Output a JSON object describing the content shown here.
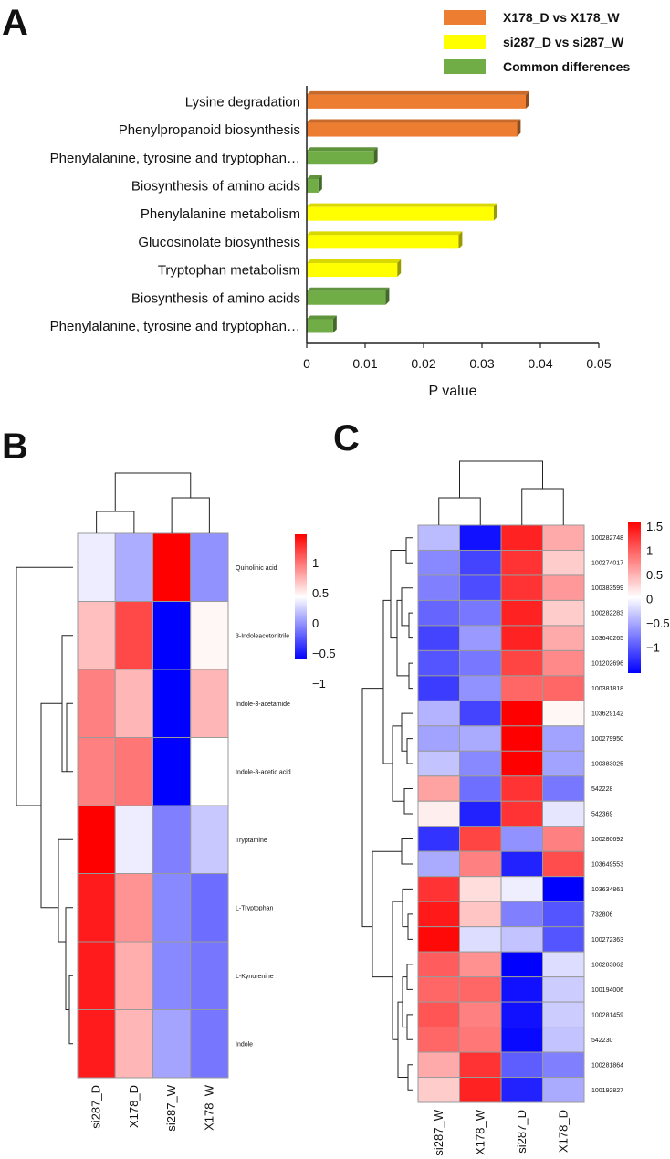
{
  "chart_data": [
    {
      "panel": "A",
      "type": "bar",
      "orientation": "horizontal",
      "categories": [
        "Lysine degradation",
        "Phenylpropanoid biosynthesis",
        "Phenylalanine, tyrosine and tryptophan…",
        "Biosynthesis of amino acids",
        "Phenylalanine metabolism",
        "Glucosinolate biosynthesis",
        "Tryptophan metabolism",
        "Biosynthesis of amino acids",
        "Phenylalanine, tyrosine and tryptophan…"
      ],
      "values": [
        0.0375,
        0.036,
        0.0115,
        0.002,
        0.032,
        0.026,
        0.0155,
        0.0135,
        0.0045
      ],
      "groups": [
        0,
        0,
        2,
        2,
        1,
        1,
        1,
        2,
        2
      ],
      "legend": [
        "X178_D vs X178_W",
        "si287_D vs si287_W",
        "Common differences"
      ],
      "colors": [
        "#ed7d31",
        "#ffff00",
        "#70ad47"
      ],
      "xlabel": "P value",
      "ylabel": "",
      "xlim": [
        0,
        0.05
      ],
      "xticks": [
        "0",
        "0.01",
        "0.02",
        "0.03",
        "0.04",
        "0.05"
      ],
      "legend_position": "top-right"
    },
    {
      "panel": "B",
      "type": "heatmap",
      "rows": [
        "Quinolinic acid",
        "3-Indoleacetonitrile",
        "Indole-3-acetamide",
        "Indole-3-acetic acid",
        "Tryptamine",
        "L-Tryptophan",
        "L-Kynurenine",
        "Indole"
      ],
      "columns": [
        "si287_D",
        "X178_D",
        "si287_W",
        "X178_W"
      ],
      "values": [
        [
          -0.1,
          -0.45,
          1.4,
          -0.6
        ],
        [
          0.35,
          1.0,
          -1.4,
          0.05
        ],
        [
          0.7,
          0.4,
          -1.4,
          0.4
        ],
        [
          0.7,
          0.75,
          -1.4,
          0.0
        ],
        [
          1.4,
          -0.1,
          -0.7,
          -0.3
        ],
        [
          1.25,
          0.6,
          -0.65,
          -0.8
        ],
        [
          1.25,
          0.45,
          -0.65,
          -0.75
        ],
        [
          1.25,
          0.4,
          -0.5,
          -0.75
        ]
      ],
      "colorbar": {
        "range": [
          -1.4,
          1.4
        ],
        "ticks": [
          "1",
          "0.5",
          "0",
          "−0.5",
          "−1"
        ],
        "colors": [
          "#0000ff",
          "#ffffff",
          "#ff0000"
        ]
      }
    },
    {
      "panel": "C",
      "type": "heatmap",
      "rows": [
        "100282748",
        "100274017",
        "100383599",
        "100282283",
        "103640265",
        "101202696",
        "100381818",
        "103629142",
        "100279950",
        "100383025",
        "542228",
        "542369",
        "100280692",
        "103649553",
        "103634861",
        "732806",
        "100272363",
        "100283862",
        "100194006",
        "100281459",
        "542230",
        "100281864",
        "100192827"
      ],
      "columns": [
        "si287_W",
        "X178_W",
        "si287_D",
        "X178_D"
      ],
      "values": [
        [
          -0.4,
          -1.4,
          1.3,
          0.5
        ],
        [
          -0.7,
          -1.1,
          1.2,
          0.3
        ],
        [
          -0.75,
          -1.05,
          1.2,
          0.6
        ],
        [
          -0.9,
          -0.8,
          1.3,
          0.3
        ],
        [
          -1.1,
          -0.6,
          1.3,
          0.5
        ],
        [
          -1.0,
          -0.8,
          1.1,
          0.7
        ],
        [
          -1.15,
          -0.65,
          0.9,
          0.9
        ],
        [
          -0.45,
          -1.1,
          1.5,
          0.05
        ],
        [
          -0.55,
          -0.5,
          1.5,
          -0.55
        ],
        [
          -0.35,
          -0.7,
          1.5,
          -0.55
        ],
        [
          0.55,
          -0.85,
          1.2,
          -0.8
        ],
        [
          0.1,
          -1.3,
          1.2,
          -0.15
        ],
        [
          -1.2,
          1.1,
          -0.65,
          0.75
        ],
        [
          -0.5,
          0.75,
          -1.3,
          1.05
        ],
        [
          1.2,
          0.2,
          -0.1,
          -1.5
        ],
        [
          1.35,
          0.35,
          -0.75,
          -1.0
        ],
        [
          1.45,
          -0.2,
          -0.35,
          -1.0
        ],
        [
          0.95,
          0.65,
          -1.5,
          -0.2
        ],
        [
          0.9,
          0.9,
          -1.4,
          -0.3
        ],
        [
          1.0,
          0.75,
          -1.4,
          -0.3
        ],
        [
          0.9,
          0.8,
          -1.45,
          -0.35
        ],
        [
          0.5,
          1.2,
          -0.95,
          -0.75
        ],
        [
          0.3,
          1.3,
          -1.3,
          -0.5
        ]
      ],
      "colorbar": {
        "range": [
          -1.5,
          1.5
        ],
        "ticks": [
          "1.5",
          "1",
          "0.5",
          "0",
          "−0.5",
          "−1"
        ],
        "colors": [
          "#0000ff",
          "#ffffff",
          "#ff0000"
        ]
      }
    }
  ]
}
